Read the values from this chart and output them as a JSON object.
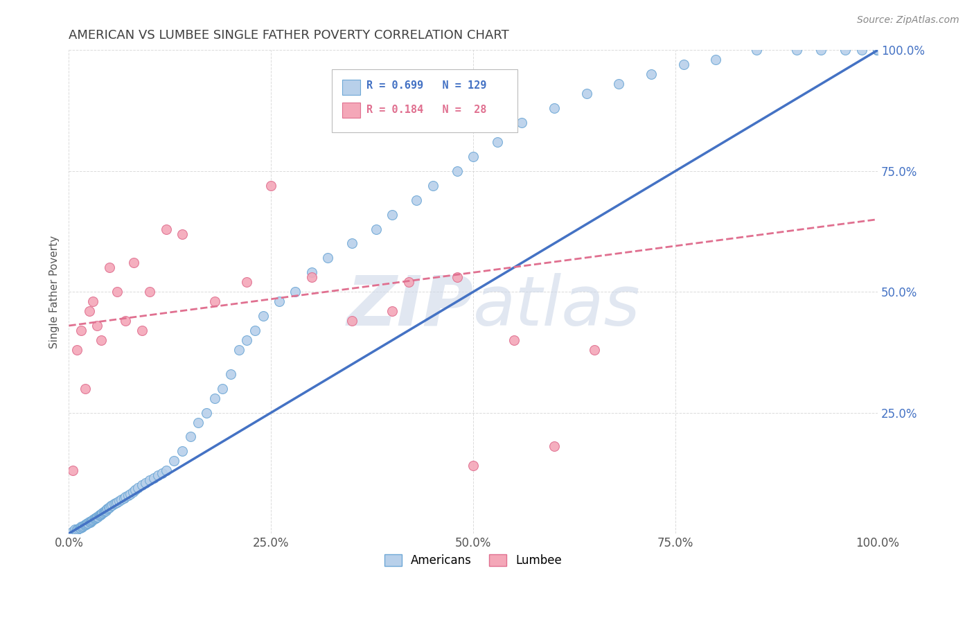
{
  "title": "AMERICAN VS LUMBEE SINGLE FATHER POVERTY CORRELATION CHART",
  "source_text": "Source: ZipAtlas.com",
  "ylabel": "Single Father Poverty",
  "xlim": [
    0,
    1
  ],
  "ylim": [
    0,
    1
  ],
  "xticks": [
    0,
    0.25,
    0.5,
    0.75,
    1.0
  ],
  "yticks": [
    0,
    0.25,
    0.5,
    0.75,
    1.0
  ],
  "xticklabels": [
    "0.0%",
    "25.0%",
    "50.0%",
    "75.0%",
    "100.0%"
  ],
  "yticklabels": [
    "",
    "25.0%",
    "50.0%",
    "75.0%",
    "100.0%"
  ],
  "american_R": 0.699,
  "american_N": 129,
  "lumbee_R": 0.184,
  "lumbee_N": 28,
  "american_color": "#b8d0ea",
  "american_edge_color": "#6fa8d6",
  "lumbee_color": "#f4a7b8",
  "lumbee_edge_color": "#e07090",
  "american_line_color": "#4472c4",
  "lumbee_line_color": "#e07090",
  "background_color": "#ffffff",
  "grid_color": "#cccccc",
  "title_color": "#404040",
  "watermark_color": "#cdd8e8",
  "legend_label_american": "Americans",
  "legend_label_lumbee": "Lumbee",
  "am_x": [
    0.005,
    0.007,
    0.009,
    0.01,
    0.012,
    0.013,
    0.014,
    0.015,
    0.016,
    0.017,
    0.018,
    0.019,
    0.02,
    0.021,
    0.022,
    0.023,
    0.024,
    0.025,
    0.026,
    0.027,
    0.028,
    0.029,
    0.03,
    0.031,
    0.032,
    0.033,
    0.034,
    0.035,
    0.036,
    0.037,
    0.038,
    0.039,
    0.04,
    0.041,
    0.042,
    0.043,
    0.044,
    0.045,
    0.046,
    0.047,
    0.048,
    0.049,
    0.05,
    0.052,
    0.054,
    0.056,
    0.058,
    0.06,
    0.062,
    0.065,
    0.068,
    0.07,
    0.073,
    0.076,
    0.079,
    0.082,
    0.085,
    0.09,
    0.095,
    0.1,
    0.105,
    0.11,
    0.115,
    0.12,
    0.13,
    0.14,
    0.15,
    0.16,
    0.17,
    0.18,
    0.19,
    0.2,
    0.21,
    0.22,
    0.23,
    0.24,
    0.26,
    0.28,
    0.3,
    0.32,
    0.35,
    0.38,
    0.4,
    0.43,
    0.45,
    0.48,
    0.5,
    0.53,
    0.56,
    0.6,
    0.64,
    0.68,
    0.72,
    0.76,
    0.8,
    0.85,
    0.9,
    0.93,
    0.96,
    0.98,
    1.0,
    1.0,
    1.0,
    1.0,
    1.0,
    1.0,
    1.0,
    1.0,
    1.0,
    1.0,
    1.0,
    1.0,
    1.0,
    1.0,
    1.0,
    1.0,
    1.0,
    1.0,
    1.0,
    1.0,
    1.0,
    1.0,
    1.0,
    1.0,
    1.0,
    1.0,
    1.0,
    1.0,
    1.0
  ],
  "am_y": [
    0.005,
    0.008,
    0.006,
    0.009,
    0.01,
    0.012,
    0.011,
    0.014,
    0.013,
    0.015,
    0.016,
    0.017,
    0.018,
    0.019,
    0.02,
    0.021,
    0.022,
    0.024,
    0.023,
    0.025,
    0.026,
    0.027,
    0.028,
    0.03,
    0.031,
    0.032,
    0.033,
    0.034,
    0.035,
    0.037,
    0.038,
    0.039,
    0.04,
    0.042,
    0.043,
    0.044,
    0.046,
    0.047,
    0.048,
    0.05,
    0.052,
    0.053,
    0.055,
    0.057,
    0.059,
    0.061,
    0.063,
    0.065,
    0.068,
    0.07,
    0.073,
    0.076,
    0.079,
    0.082,
    0.086,
    0.09,
    0.094,
    0.1,
    0.105,
    0.11,
    0.115,
    0.12,
    0.125,
    0.13,
    0.15,
    0.17,
    0.2,
    0.23,
    0.25,
    0.28,
    0.3,
    0.33,
    0.38,
    0.4,
    0.42,
    0.45,
    0.48,
    0.5,
    0.54,
    0.57,
    0.6,
    0.63,
    0.66,
    0.69,
    0.72,
    0.75,
    0.78,
    0.81,
    0.85,
    0.88,
    0.91,
    0.93,
    0.95,
    0.97,
    0.98,
    1.0,
    1.0,
    1.0,
    1.0,
    1.0,
    1.0,
    1.0,
    1.0,
    1.0,
    1.0,
    1.0,
    1.0,
    1.0,
    1.0,
    1.0,
    1.0,
    1.0,
    1.0,
    1.0,
    1.0,
    1.0,
    1.0,
    1.0,
    1.0,
    1.0,
    1.0,
    1.0,
    1.0,
    1.0,
    1.0,
    1.0,
    1.0,
    1.0,
    1.0
  ],
  "lu_x": [
    0.005,
    0.01,
    0.015,
    0.02,
    0.025,
    0.03,
    0.035,
    0.04,
    0.05,
    0.06,
    0.07,
    0.08,
    0.09,
    0.1,
    0.12,
    0.14,
    0.18,
    0.22,
    0.25,
    0.3,
    0.35,
    0.4,
    0.42,
    0.48,
    0.5,
    0.55,
    0.6,
    0.65
  ],
  "lu_y": [
    0.13,
    0.38,
    0.42,
    0.3,
    0.46,
    0.48,
    0.43,
    0.4,
    0.55,
    0.5,
    0.44,
    0.56,
    0.42,
    0.5,
    0.63,
    0.62,
    0.48,
    0.52,
    0.72,
    0.53,
    0.44,
    0.46,
    0.52,
    0.53,
    0.14,
    0.4,
    0.18,
    0.38
  ],
  "am_line_x0": 0.0,
  "am_line_y0": 0.0,
  "am_line_x1": 1.0,
  "am_line_y1": 1.0,
  "lu_line_x0": 0.0,
  "lu_line_y0": 0.43,
  "lu_line_x1": 1.0,
  "lu_line_y1": 0.65
}
